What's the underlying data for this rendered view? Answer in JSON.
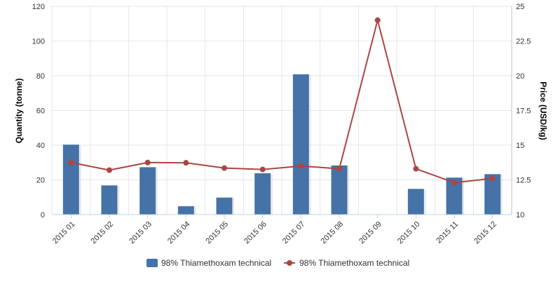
{
  "chart_data": {
    "type": "bar",
    "categories": [
      "2015 01",
      "2015 02",
      "2015 03",
      "2015 04",
      "2015 05",
      "2015 06",
      "2015 07",
      "2015 08",
      "2015 09",
      "2015 10",
      "2015 11",
      "2015 12"
    ],
    "series": [
      {
        "name": "98% Thiamethoxam technical",
        "type": "bar",
        "axis": "left",
        "color": "#4572A7",
        "values": [
          40.5,
          17,
          27.5,
          5,
          10,
          24,
          81,
          28.5,
          0,
          15,
          21.5,
          23.5
        ]
      },
      {
        "name": "98% Thiamethoxam technical",
        "type": "line",
        "axis": "right",
        "color": "#AA4643",
        "values": [
          13.75,
          13.2,
          13.75,
          13.73,
          13.35,
          13.25,
          13.5,
          13.3,
          24,
          13.3,
          12.3,
          12.6
        ]
      }
    ],
    "y_left": {
      "label": "Quantity (tonne)",
      "range": [
        0,
        120
      ],
      "ticks": [
        "0",
        "20",
        "40",
        "60",
        "80",
        "100",
        "120"
      ]
    },
    "y_right": {
      "label": "Price (USD/kg)",
      "range": [
        10,
        25
      ],
      "ticks": [
        "10",
        "12.5",
        "15",
        "17.5",
        "20",
        "22.5",
        "25"
      ]
    },
    "grid": true,
    "legend_position": "bottom"
  }
}
